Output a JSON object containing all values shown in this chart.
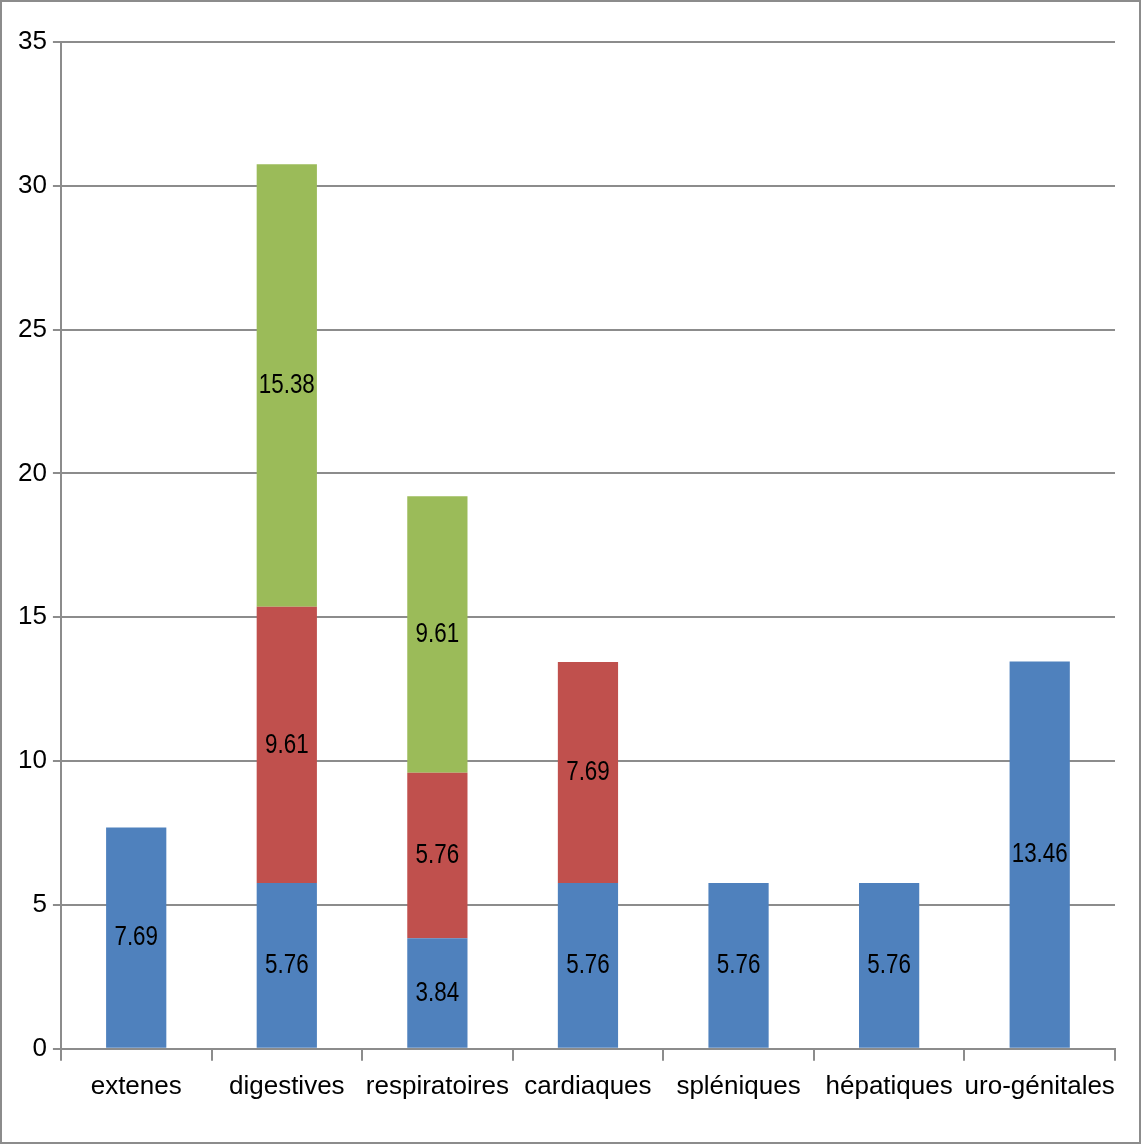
{
  "chart_data": {
    "type": "bar",
    "stacked": true,
    "categories": [
      "extenes",
      "digestives",
      "respiratoires",
      "cardiaques",
      "spléniques",
      "hépatiques",
      "uro-génitales"
    ],
    "series": [
      {
        "color": "#4f81bd",
        "values": [
          7.69,
          5.76,
          3.84,
          5.76,
          5.76,
          5.76,
          13.46
        ]
      },
      {
        "color": "#c0504d",
        "values": [
          null,
          9.61,
          5.76,
          7.69,
          null,
          null,
          null
        ]
      },
      {
        "color": "#9bbb59",
        "values": [
          null,
          15.38,
          9.61,
          null,
          null,
          null,
          null
        ]
      }
    ],
    "ylim": [
      0,
      35
    ],
    "yticks": [
      0,
      5,
      10,
      15,
      20,
      25,
      30,
      35
    ],
    "grid": "y",
    "legend": false,
    "data_labels": true
  }
}
